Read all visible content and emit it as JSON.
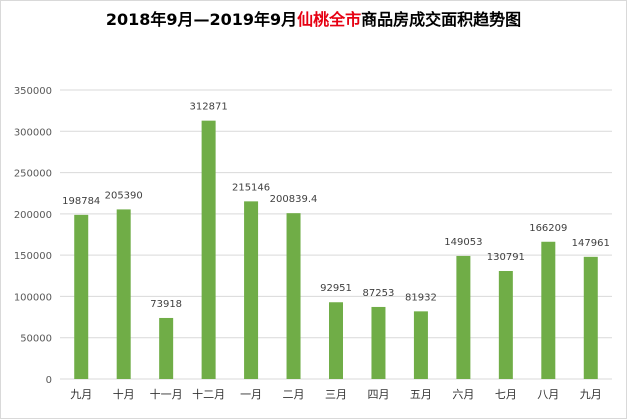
{
  "title": {
    "prefix": "2018年9月—2019年9月",
    "highlight": "仙桃全市",
    "suffix": "商品房成交面积趋势图"
  },
  "colors": {
    "bar": "#70ad47",
    "title_highlight": "#e60012",
    "grid": "#d9d9d9"
  },
  "chart_data": {
    "type": "bar",
    "categories": [
      "九月",
      "十月",
      "十一月",
      "十二月",
      "一月",
      "二月",
      "三月",
      "四月",
      "五月",
      "六月",
      "七月",
      "八月",
      "九月"
    ],
    "values": [
      198784,
      205390,
      73918,
      312871,
      215146,
      200839.4,
      92951,
      87253,
      81932,
      149053,
      130791,
      166209,
      147961
    ],
    "data_labels": [
      "198784",
      "205390",
      "73918",
      "312871",
      "215146",
      "200839.4",
      "92951",
      "87253",
      "81932",
      "149053",
      "130791",
      "166209",
      "147961"
    ],
    "y_ticks": [
      0,
      50000,
      100000,
      150000,
      200000,
      250000,
      300000,
      350000
    ],
    "ylim": [
      0,
      350000
    ],
    "grid": true,
    "legend": "none"
  }
}
